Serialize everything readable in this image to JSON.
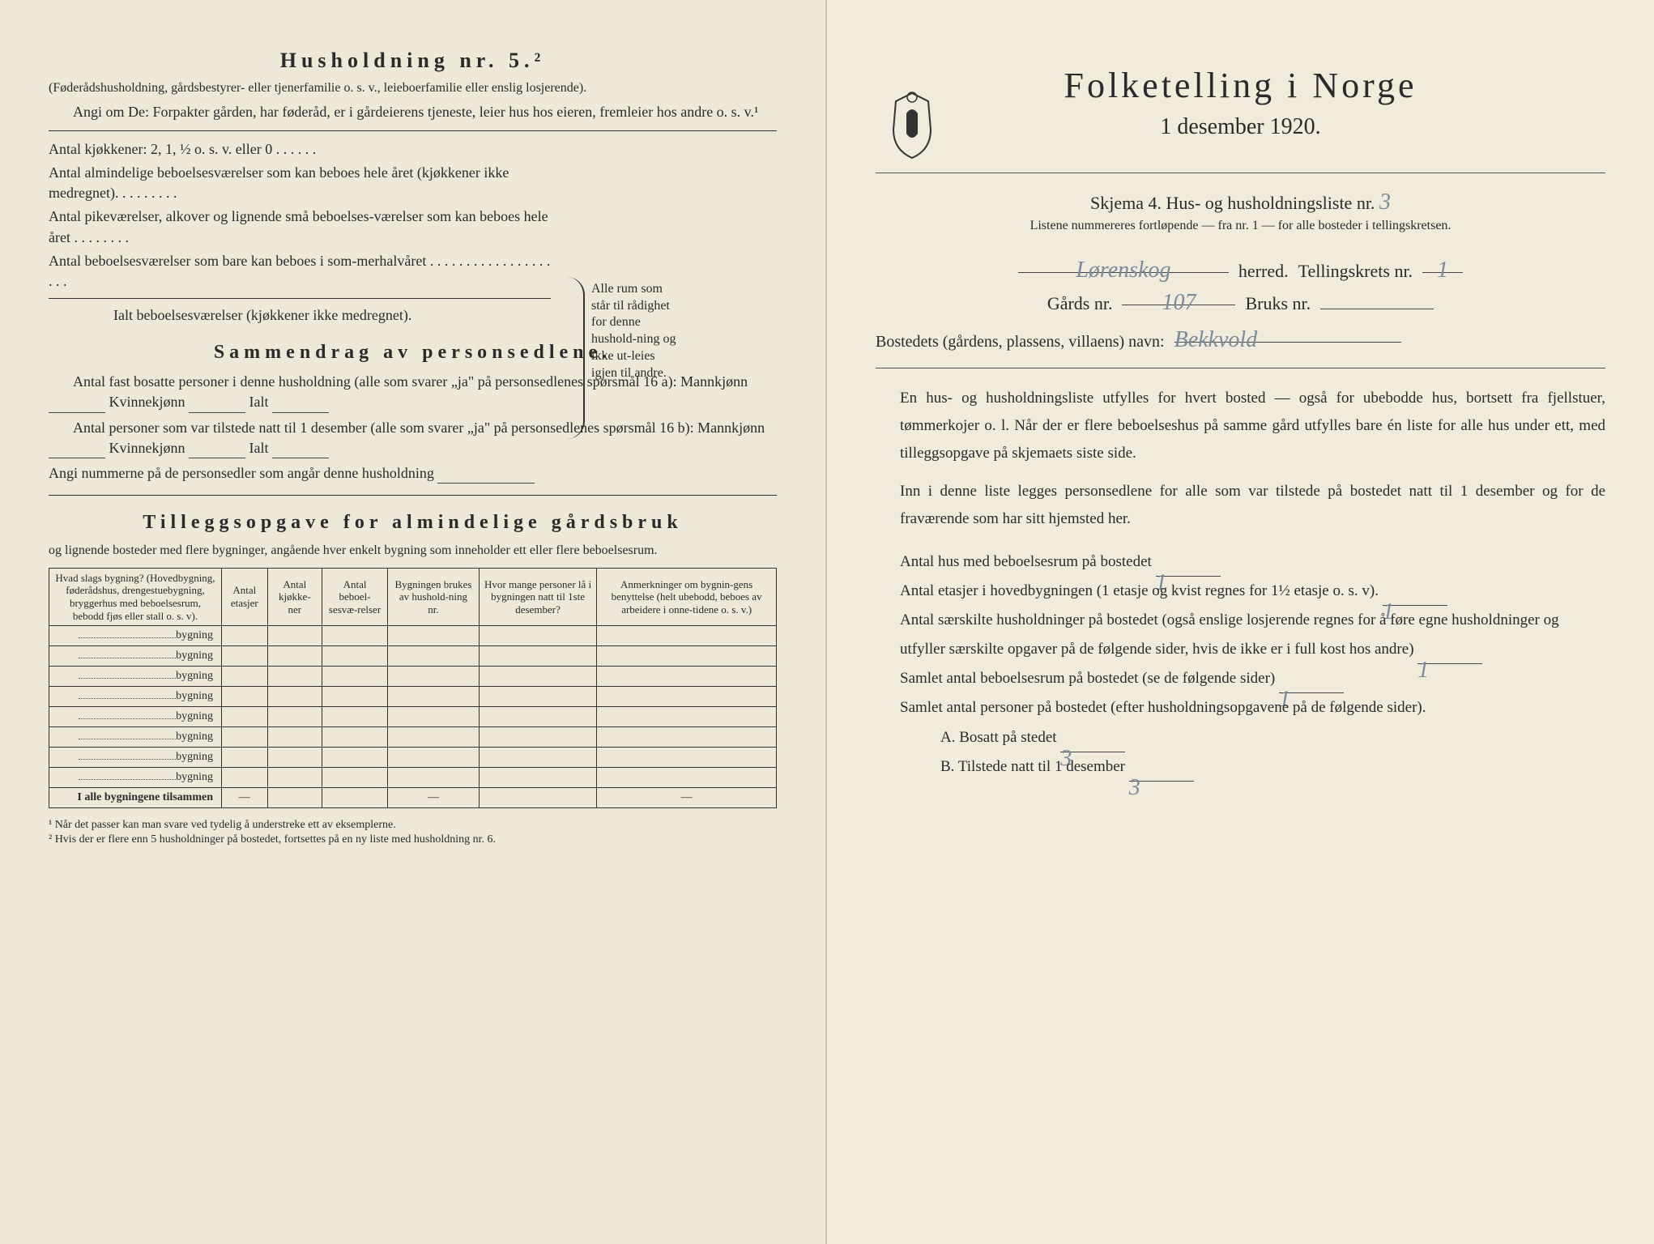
{
  "left": {
    "heading": "Husholdning nr. 5.²",
    "sub1": "(Føderådshusholdning, gårdsbestyrer- eller tjenerfamilie o. s. v., leieboerfamilie eller enslig losjerende).",
    "sub2": "Angi om De: Forpakter gården, har føderåd, er i gårdeierens tjeneste, leier hus hos eieren, fremleier hos andre o. s. v.¹",
    "kitchens": "Antal kjøkkener: 2, 1, ½ o. s. v. eller 0 . . . . . .",
    "rooms1": "Antal almindelige beboelsesværelser som kan beboes hele året (kjøkkener ikke medregnet). . . . . . . . .",
    "rooms2": "Antal pikeværelser, alkover og lignende små beboelses-værelser som kan beboes hele året . . . . . . . .",
    "rooms3": "Antal beboelsesværelser som bare kan beboes i som-merhalvåret . . . . . . . . . . . . . . . . . . . .",
    "rooms4": "Ialt beboelsesværelser (kjøkkener ikke medregnet).",
    "bracket_text": "Alle rum som står til rådighet for denne hushold-ning og ikke ut-leies igjen til andre.",
    "summary_heading": "Sammendrag av personsedlene.",
    "summary1a": "Antal fast bosatte personer i denne husholdning (alle som svarer „ja\" på personsedlenes spørsmål 16 a): Mannkjønn",
    "summary1b": "Kvinnekjønn",
    "summary1c": "Ialt",
    "summary2a": "Antal personer som var tilstede natt til 1 desember (alle som svarer „ja\" på personsedlenes spørsmål 16 b): Mannkjønn",
    "summary2b": "Kvinnekjønn",
    "summary2c": "Ialt",
    "summary3": "Angi nummerne på de personsedler som angår denne husholdning",
    "tillegg_heading": "Tilleggsopgave for almindelige gårdsbruk",
    "tillegg_sub": "og lignende bosteder med flere bygninger, angående hver enkelt bygning som inneholder ett eller flere beboelsesrum.",
    "table": {
      "headers": [
        "Hvad slags bygning?\n(Hovedbygning, føderådshus, drengestuebygning, bryggerhus med beboelsesrum, bebodd fjøs eller stall o. s. v).",
        "Antal etasjer",
        "Antal kjøkke-ner",
        "Antal beboel-sesvæ-relser",
        "Bygningen brukes av hushold-ning nr.",
        "Hvor mange personer lå i bygningen natt til 1ste desember?",
        "Anmerkninger om bygnin-gens benyttelse (helt ubebodd, beboes av arbeidere i onne-tidene o. s. v.)"
      ],
      "row_label": "bygning",
      "total_row": "I alle bygningene tilsammen",
      "row_count": 8
    },
    "footnote1": "¹ Når det passer kan man svare ved tydelig å understreke ett av eksemplerne.",
    "footnote2": "² Hvis der er flere enn 5 husholdninger på bostedet, fortsettes på en ny liste med husholdning nr. 6."
  },
  "right": {
    "title": "Folketelling i Norge",
    "date": "1 desember 1920.",
    "skjema": "Skjema 4.  Hus- og husholdningsliste nr.",
    "skjema_nr": "3",
    "listene": "Listene nummereres fortløpende — fra nr. 1 — for alle bosteder i tellingskretsen.",
    "herred_value": "Lørenskog",
    "herred_label": "herred.",
    "tellingskrets_label": "Tellingskrets nr.",
    "tellingskrets_nr": "1",
    "gards_label": "Gårds nr.",
    "gards_nr": "107",
    "bruks_label": "Bruks nr.",
    "bruks_nr": "",
    "bosted_label": "Bostedets (gårdens, plassens, villaens) navn:",
    "bosted_value": "Bekkvold",
    "para1": "En hus- og husholdningsliste utfylles for hvert bosted — også for ubebodde hus, bortsett fra fjellstuer, tømmerkojer o. l.  Når der er flere beboelseshus på samme gård utfylles bare én liste for alle hus under ett, med tilleggsopgave på skjemaets siste side.",
    "para2": "Inn i denne liste legges personsedlene for alle som var tilstede på bostedet natt til 1 desember og for de fraværende som har sitt hjemsted her.",
    "q1": "Antal hus med beboelsesrum på bostedet",
    "q1_val": "1",
    "q2a": "Antal etasjer i hovedbygningen (1 etasje og kvist regnes for 1½ etasje o. s. v).",
    "q2_val": "1",
    "q3": "Antal særskilte husholdninger på bostedet (også enslige losjerende regnes for å føre egne husholdninger og utfyller særskilte opgaver på de følgende sider, hvis de ikke er i full kost hos andre)",
    "q3_val": "1",
    "q4": "Samlet antal beboelsesrum på bostedet (se de følgende sider)",
    "q4_val": "1",
    "q5": "Samlet antal personer på bostedet (efter husholdningsopgavene på de følgende sider).",
    "qA": "A.  Bosatt på stedet",
    "qA_val": "3",
    "qB": "B.  Tilstede natt til 1 desember",
    "qB_val": "3"
  },
  "colors": {
    "paper": "#ede8d8",
    "ink": "#2a2a2a",
    "handwriting": "#7a8a9a"
  }
}
